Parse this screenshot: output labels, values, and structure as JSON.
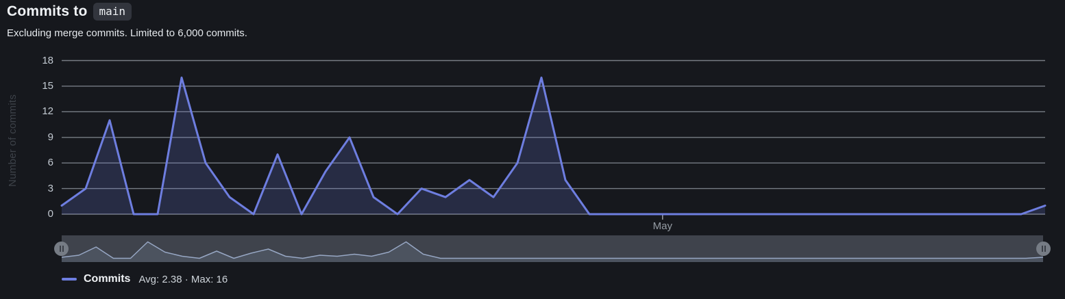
{
  "header": {
    "title_prefix": "Commits to",
    "branch": "main",
    "subtitle": "Excluding merge commits. Limited to 6,000 commits."
  },
  "chart_data": {
    "type": "area",
    "title": "Commits to main",
    "xlabel": "",
    "ylabel": "Number of commits",
    "ylim": [
      0,
      18
    ],
    "y_ticks": [
      0,
      3,
      6,
      9,
      12,
      15,
      18
    ],
    "x_tick_labels": [
      "May"
    ],
    "x_tick_fractions": [
      0.611
    ],
    "grid": "horizontal",
    "legend_position": "bottom",
    "series": [
      {
        "name": "Commits",
        "values": [
          1,
          3,
          11,
          0,
          0,
          16,
          6,
          2,
          0,
          7,
          0,
          5,
          9,
          2,
          0,
          3,
          2,
          4,
          2,
          6,
          16,
          4,
          0,
          0,
          0,
          0,
          0,
          0,
          0,
          0,
          0,
          0,
          0,
          0,
          0,
          0,
          0,
          0,
          0,
          0,
          0,
          1
        ]
      }
    ],
    "overview_values": [
      1,
      3,
      11,
      0,
      0,
      16,
      6,
      2,
      0,
      7,
      0,
      5,
      9,
      2,
      0,
      3,
      2,
      4,
      2,
      6,
      16,
      4,
      0,
      0,
      0,
      0,
      0,
      0,
      0,
      0,
      0,
      0,
      0,
      0,
      0,
      0,
      0,
      0,
      0,
      0,
      0,
      0,
      0,
      0,
      0,
      0,
      0,
      0,
      0,
      0,
      0,
      0,
      0,
      0,
      0,
      0,
      0,
      1
    ],
    "avg": 2.38,
    "max": 16
  },
  "legend": {
    "series_label": "Commits",
    "stats": "Avg: 2.38 · Max: 16"
  },
  "colors": {
    "line": "#6e7ee0",
    "area_fill": "rgba(110,126,224,0.20)",
    "gridline": "rgba(201,208,216,0.55)",
    "tick_text": "#c3cad2",
    "x_tick_mark": "#9aa0a6",
    "minimap_line": "#97a7c4",
    "minimap_fill": "rgba(151,167,196,0.16)",
    "brush_track": "#3f434c",
    "brush_handle": "#767c85",
    "background": "#16181d"
  }
}
